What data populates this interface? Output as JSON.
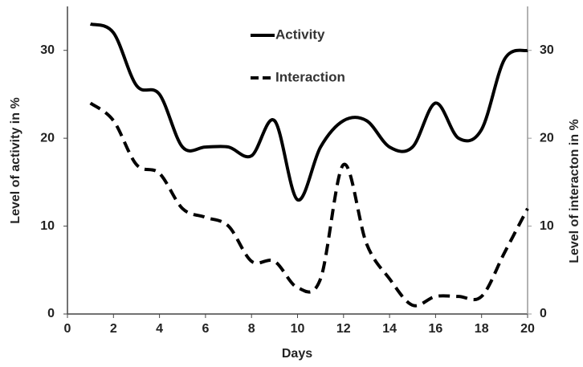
{
  "chart_data": {
    "type": "line",
    "xlabel": "Days",
    "ylabel": "Level of activity in %",
    "y2label": "Level of interacton in %",
    "x": [
      1,
      2,
      3,
      4,
      5,
      6,
      7,
      8,
      9,
      10,
      11,
      12,
      13,
      14,
      15,
      16,
      17,
      18,
      19,
      20
    ],
    "series": [
      {
        "name": "Activity",
        "color": "#000000",
        "dash": false,
        "values": [
          33,
          32,
          26,
          25,
          19,
          19,
          19,
          18,
          22,
          13,
          19,
          22,
          22,
          19,
          19,
          24,
          20,
          21,
          29,
          30
        ]
      },
      {
        "name": "Interaction",
        "color": "#000000",
        "dash": true,
        "axis": "y2",
        "values": [
          24,
          22,
          17,
          16,
          12,
          11,
          10,
          6,
          6,
          3,
          4,
          17,
          8,
          4,
          1,
          2,
          2,
          2,
          7,
          12
        ]
      }
    ],
    "xlim": [
      0,
      20
    ],
    "xticks": [
      0,
      2,
      4,
      6,
      8,
      10,
      12,
      14,
      16,
      18,
      20
    ],
    "ylim": [
      0,
      35
    ],
    "yticks": [
      0,
      10,
      20,
      30
    ],
    "y2lim": [
      0,
      35
    ],
    "y2ticks": [
      0,
      10,
      20,
      30
    ],
    "legend": "top"
  }
}
